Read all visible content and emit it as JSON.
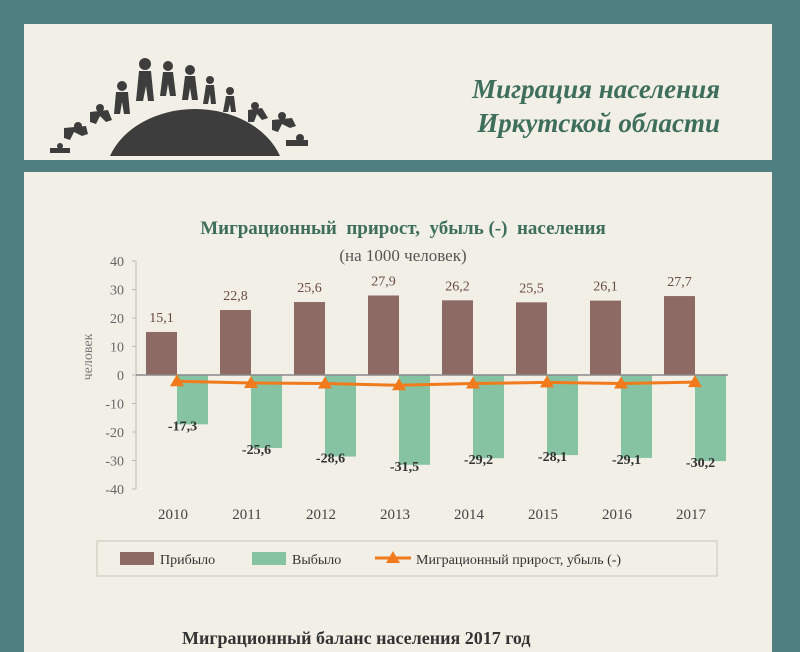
{
  "header": {
    "title_line1": "Миграция населения",
    "title_line2": "Иркутской области"
  },
  "colors": {
    "background": "#4f7f80",
    "panel": "#f1efe6",
    "arrived": "#8e6a64",
    "departed": "#86c3a2",
    "migration_line": "#f07a1c",
    "title_green": "#3e6e5c"
  },
  "chart_data": {
    "type": "bar",
    "title": "Миграционный  прирост,  убыль (-)  населения",
    "subtitle": "(на 1000 человек)",
    "ylabel": "человек",
    "ylim": [
      -40,
      40
    ],
    "yticks": [
      40,
      30,
      20,
      10,
      0,
      -10,
      -20,
      -30,
      -40
    ],
    "categories": [
      "2010",
      "2011",
      "2012",
      "2013",
      "2014",
      "2015",
      "2016",
      "2017"
    ],
    "series": [
      {
        "name": "Прибыло",
        "type": "bar",
        "values": [
          15.1,
          22.8,
          25.6,
          27.9,
          26.2,
          25.5,
          26.1,
          27.7
        ],
        "labels": [
          "15,1",
          "22,8",
          "25,6",
          "27,9",
          "26,2",
          "25,5",
          "26,1",
          "27,7"
        ]
      },
      {
        "name": "Выбыло",
        "type": "bar",
        "values": [
          -17.3,
          -25.6,
          -28.6,
          -31.5,
          -29.2,
          -28.1,
          -29.1,
          -30.2
        ],
        "labels": [
          "-17,3",
          "-25,6",
          "-28,6",
          "-31,5",
          "-29,2",
          "-28,1",
          "-29,1",
          "-30,2"
        ]
      },
      {
        "name": "Миграционный  прирост,  убыль (-)",
        "type": "line",
        "values": [
          -2.2,
          -2.8,
          -3.0,
          -3.6,
          -3.0,
          -2.6,
          -3.0,
          -2.5
        ]
      }
    ],
    "legend_position": "bottom",
    "grid": false
  },
  "footer": {
    "text": "Миграционный баланс населения 2017 год"
  }
}
